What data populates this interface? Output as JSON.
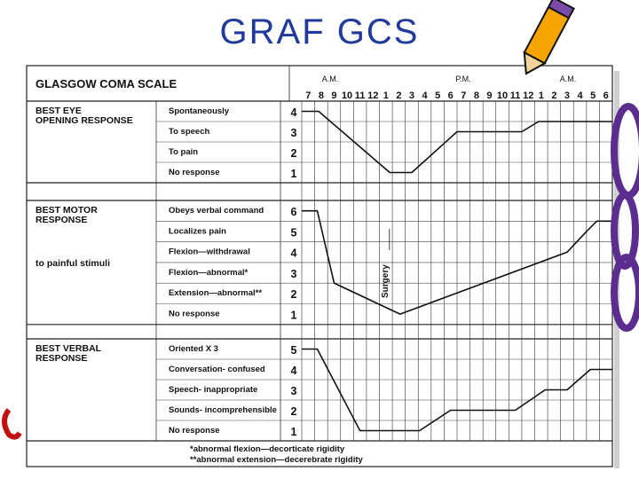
{
  "slide": {
    "title": "GRAF GCS"
  },
  "chart_data": {
    "type": "line",
    "title": "GLASGOW COMA SCALE",
    "period_labels": [
      "A.M.",
      "P.M.",
      "A.M."
    ],
    "time_labels": [
      "7",
      "8",
      "9",
      "10",
      "11",
      "12",
      "1",
      "2",
      "3",
      "4",
      "5",
      "6",
      "7",
      "8",
      "9",
      "10",
      "11",
      "12",
      "1",
      "2",
      "3",
      "4",
      "5",
      "6"
    ],
    "sections": [
      {
        "key": "eye",
        "heading": [
          "BEST EYE",
          "OPENING RESPONSE"
        ],
        "rows": [
          {
            "label": "Spontaneously",
            "score": "4"
          },
          {
            "label": "To speech",
            "score": "3"
          },
          {
            "label": "To pain",
            "score": "2"
          },
          {
            "label": "No response",
            "score": "1"
          }
        ]
      },
      {
        "key": "motor",
        "heading": [
          "BEST MOTOR",
          "RESPONSE"
        ],
        "subheading": "to painful stimuli",
        "rows": [
          {
            "label": "Obeys verbal command",
            "score": "6"
          },
          {
            "label": "Localizes pain",
            "score": "5"
          },
          {
            "label": "Flexion—withdrawal",
            "score": "4"
          },
          {
            "label": "Flexion—abnormal*",
            "score": "3"
          },
          {
            "label": "Extension—abnormal**",
            "score": "2"
          },
          {
            "label": "No response",
            "score": "1"
          }
        ]
      },
      {
        "key": "verbal",
        "heading": [
          "BEST VERBAL",
          "RESPONSE"
        ],
        "rows": [
          {
            "label": "Oriented X 3",
            "score": "5"
          },
          {
            "label": "Conversation- confused",
            "score": "4"
          },
          {
            "label": "Speech- inappropriate",
            "score": "3"
          },
          {
            "label": "Sounds- incomprehensible",
            "score": "2"
          },
          {
            "label": "No response",
            "score": "1"
          }
        ]
      }
    ],
    "annotation": "Surgery",
    "footnotes": [
      "*abnormal flexion—decorticate rigidity",
      "**abnormal extension—decerebrate rigidity"
    ],
    "series": [
      {
        "section": "eye",
        "points": [
          [
            0,
            4
          ],
          [
            1.3,
            4
          ],
          [
            6.8,
            1
          ],
          [
            8.5,
            1
          ],
          [
            12,
            3
          ],
          [
            17,
            3
          ],
          [
            18.3,
            3.5
          ],
          [
            24,
            3.5
          ]
        ]
      },
      {
        "section": "motor",
        "points": [
          [
            0,
            6
          ],
          [
            1.2,
            6
          ],
          [
            2.5,
            2.5
          ],
          [
            7.6,
            1
          ],
          [
            20.5,
            4
          ],
          [
            22,
            5
          ],
          [
            22.8,
            5.5
          ],
          [
            24,
            5.5
          ]
        ]
      },
      {
        "section": "verbal",
        "points": [
          [
            0,
            5
          ],
          [
            1.2,
            5
          ],
          [
            4.5,
            1
          ],
          [
            9.1,
            1
          ],
          [
            11.5,
            2
          ],
          [
            12,
            2
          ],
          [
            16.5,
            2
          ],
          [
            18.8,
            3
          ],
          [
            20.5,
            3
          ],
          [
            22.3,
            4
          ],
          [
            24,
            4
          ]
        ]
      }
    ],
    "surgery_at": 6.5,
    "grid": true
  }
}
